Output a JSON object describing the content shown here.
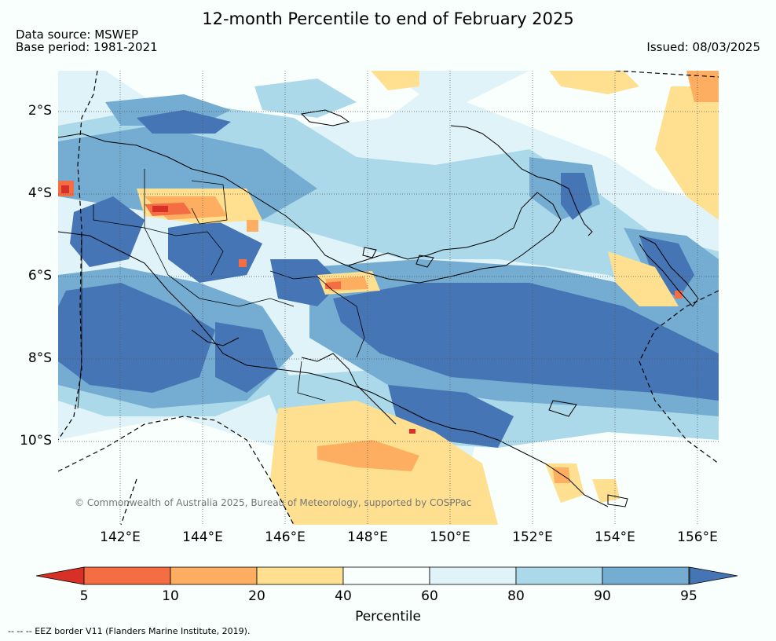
{
  "title": "12-month Percentile to end of February 2025",
  "data_source": "Data source: MSWEP",
  "base_period": "Base period: 1981-2021",
  "issued": "Issued: 08/03/2025",
  "copyright": "© Commonwealth of Australia 2025, Bureau of Meteorology, supported by COSPPac",
  "eez_note": "-- -- -- EEZ border V11 (Flanders Marine Institute, 2019).",
  "map": {
    "lon_range": [
      140.3,
      156.5
    ],
    "lat_range": [
      -11.5,
      -0.8
    ],
    "lat_ticks": [
      {
        "value": -2,
        "label": "2°S"
      },
      {
        "value": -4,
        "label": "4°S"
      },
      {
        "value": -6,
        "label": "6°S"
      },
      {
        "value": -8,
        "label": "8°S"
      },
      {
        "value": -10,
        "label": "10°S"
      }
    ],
    "lon_ticks": [
      {
        "value": 142,
        "label": "142°E"
      },
      {
        "value": 144,
        "label": "144°E"
      },
      {
        "value": 146,
        "label": "146°E"
      },
      {
        "value": 148,
        "label": "148°E"
      },
      {
        "value": 150,
        "label": "150°E"
      },
      {
        "value": 152,
        "label": "152°E"
      },
      {
        "value": 154,
        "label": "154°E"
      },
      {
        "value": 156,
        "label": "156°E"
      }
    ],
    "grid": "dotted"
  },
  "colorbar": {
    "title": "Percentile",
    "labels": [
      "5",
      "10",
      "20",
      "40",
      "60",
      "80",
      "90",
      "95"
    ],
    "under_color": "#d73027",
    "over_color": "#4575b4",
    "bins": [
      {
        "from": 5,
        "to": 10,
        "color": "#f46d43"
      },
      {
        "from": 10,
        "to": 20,
        "color": "#fdae61"
      },
      {
        "from": 20,
        "to": 40,
        "color": "#fee090"
      },
      {
        "from": 40,
        "to": 60,
        "color": "#f8fffd"
      },
      {
        "from": 60,
        "to": 80,
        "color": "#e0f3f8"
      },
      {
        "from": 80,
        "to": 90,
        "color": "#abd9e9"
      },
      {
        "from": 90,
        "to": 95,
        "color": "#74add1"
      }
    ]
  }
}
